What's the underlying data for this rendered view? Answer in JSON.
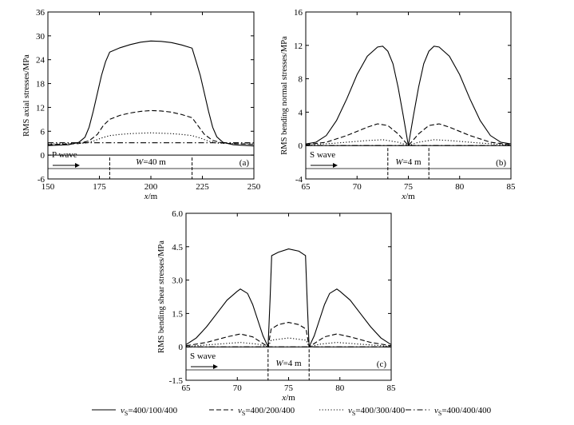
{
  "legend": {
    "entries": [
      {
        "symbol": "v",
        "subscript": "S",
        "label": "=400/100/400",
        "style": "solid"
      },
      {
        "symbol": "v",
        "subscript": "S",
        "label": "=400/200/400",
        "style": "dashed"
      },
      {
        "symbol": "v",
        "subscript": "S",
        "label": "=400/300/400",
        "style": "dotted"
      },
      {
        "symbol": "v",
        "subscript": "S",
        "label": "=400/400/400",
        "style": "dashdot"
      }
    ]
  },
  "chart_data": [
    {
      "id": "a",
      "type": "line",
      "panel_label": "(a)",
      "ylabel": "RMS axial stresses/MPa",
      "xlabel": "x/m",
      "xlim": [
        150,
        250
      ],
      "ylim": [
        -6,
        36
      ],
      "xticks": [
        150,
        175,
        200,
        225,
        250
      ],
      "yticks": [
        -6,
        0,
        6,
        12,
        18,
        24,
        30,
        36
      ],
      "wave_label": "P wave",
      "width_label": "W=40 m",
      "region": [
        180,
        220
      ],
      "series": [
        {
          "style": "solid",
          "points": [
            [
              150,
              2.4
            ],
            [
              160,
              2.6
            ],
            [
              165,
              3.2
            ],
            [
              168,
              4.5
            ],
            [
              170,
              7
            ],
            [
              172,
              11
            ],
            [
              174,
              15.5
            ],
            [
              176,
              20
            ],
            [
              178,
              23.5
            ],
            [
              180,
              25.9
            ],
            [
              185,
              27
            ],
            [
              190,
              27.8
            ],
            [
              195,
              28.4
            ],
            [
              200,
              28.7
            ],
            [
              205,
              28.6
            ],
            [
              210,
              28.3
            ],
            [
              215,
              27.7
            ],
            [
              220,
              26.9
            ],
            [
              222,
              23.5
            ],
            [
              224,
              20
            ],
            [
              226,
              15.5
            ],
            [
              228,
              11
            ],
            [
              230,
              7
            ],
            [
              232,
              4.6
            ],
            [
              235,
              3.2
            ],
            [
              240,
              2.6
            ],
            [
              250,
              2.3
            ]
          ]
        },
        {
          "style": "dashed",
          "points": [
            [
              150,
              2.6
            ],
            [
              165,
              2.9
            ],
            [
              170,
              3.6
            ],
            [
              174,
              5.2
            ],
            [
              177,
              7.5
            ],
            [
              180,
              9
            ],
            [
              185,
              10
            ],
            [
              190,
              10.6
            ],
            [
              195,
              11
            ],
            [
              200,
              11.2
            ],
            [
              205,
              11.1
            ],
            [
              210,
              10.8
            ],
            [
              215,
              10.2
            ],
            [
              220,
              9.4
            ],
            [
              223,
              7.3
            ],
            [
              226,
              5.2
            ],
            [
              230,
              3.7
            ],
            [
              235,
              3
            ],
            [
              250,
              2.7
            ]
          ]
        },
        {
          "style": "dotted",
          "points": [
            [
              150,
              2.8
            ],
            [
              168,
              3
            ],
            [
              172,
              3.5
            ],
            [
              176,
              4.3
            ],
            [
              180,
              4.9
            ],
            [
              185,
              5.2
            ],
            [
              190,
              5.4
            ],
            [
              200,
              5.6
            ],
            [
              210,
              5.4
            ],
            [
              215,
              5.2
            ],
            [
              220,
              4.9
            ],
            [
              224,
              4.3
            ],
            [
              228,
              3.5
            ],
            [
              232,
              3
            ],
            [
              250,
              2.8
            ]
          ]
        },
        {
          "style": "dashdot",
          "points": [
            [
              150,
              3.1
            ],
            [
              200,
              3.1
            ],
            [
              250,
              3.1
            ]
          ]
        }
      ]
    },
    {
      "id": "b",
      "type": "line",
      "panel_label": "(b)",
      "ylabel": "RMS bending normal stresses/MPa",
      "xlabel": "x/m",
      "xlim": [
        65,
        85
      ],
      "ylim": [
        -4,
        16
      ],
      "xticks": [
        65,
        70,
        75,
        80,
        85
      ],
      "yticks": [
        -4,
        0,
        4,
        8,
        12,
        16
      ],
      "wave_label": "S wave",
      "width_label": "W=4 m",
      "region": [
        73,
        77
      ],
      "series": [
        {
          "style": "solid",
          "points": [
            [
              65,
              0.2
            ],
            [
              66,
              0.4
            ],
            [
              67,
              1.2
            ],
            [
              68,
              3
            ],
            [
              69,
              5.6
            ],
            [
              70,
              8.5
            ],
            [
              71,
              10.7
            ],
            [
              72,
              11.8
            ],
            [
              72.5,
              11.9
            ],
            [
              73,
              11.3
            ],
            [
              73.5,
              9.8
            ],
            [
              74,
              7
            ],
            [
              74.5,
              3.6
            ],
            [
              75,
              0
            ],
            [
              75.5,
              3.6
            ],
            [
              76,
              7
            ],
            [
              76.5,
              9.8
            ],
            [
              77,
              11.3
            ],
            [
              77.5,
              11.9
            ],
            [
              78,
              11.8
            ],
            [
              79,
              10.7
            ],
            [
              80,
              8.5
            ],
            [
              81,
              5.6
            ],
            [
              82,
              3
            ],
            [
              83,
              1.2
            ],
            [
              84,
              0.4
            ],
            [
              85,
              0.2
            ]
          ]
        },
        {
          "style": "dashed",
          "points": [
            [
              65,
              0.1
            ],
            [
              67,
              0.4
            ],
            [
              69,
              1.2
            ],
            [
              71,
              2.2
            ],
            [
              72,
              2.6
            ],
            [
              73,
              2.4
            ],
            [
              74,
              1.4
            ],
            [
              75,
              0
            ],
            [
              76,
              1.4
            ],
            [
              77,
              2.4
            ],
            [
              78,
              2.6
            ],
            [
              79,
              2.2
            ],
            [
              81,
              1.2
            ],
            [
              83,
              0.4
            ],
            [
              85,
              0.1
            ]
          ]
        },
        {
          "style": "dotted",
          "points": [
            [
              65,
              0.05
            ],
            [
              68,
              0.3
            ],
            [
              71,
              0.6
            ],
            [
              72.5,
              0.7
            ],
            [
              74,
              0.4
            ],
            [
              75,
              0
            ],
            [
              76,
              0.4
            ],
            [
              77.5,
              0.7
            ],
            [
              79,
              0.6
            ],
            [
              82,
              0.3
            ],
            [
              85,
              0.05
            ]
          ]
        },
        {
          "style": "dashdot",
          "points": [
            [
              65,
              0
            ],
            [
              85,
              0
            ]
          ]
        }
      ]
    },
    {
      "id": "c",
      "type": "line",
      "panel_label": "(c)",
      "ylabel": "RMS bending shear stresses/MPa",
      "xlabel": "x/m",
      "xlim": [
        65,
        85
      ],
      "ylim": [
        -1.5,
        6.0
      ],
      "xticks": [
        65,
        70,
        75,
        80,
        85
      ],
      "yticks": [
        -1.5,
        0,
        1.5,
        3.0,
        4.5,
        6.0
      ],
      "ytick_labels": [
        "-1.5",
        "0",
        "1.5",
        "3.0",
        "4.5",
        "6.0"
      ],
      "wave_label": "S wave",
      "width_label": "W=4 m",
      "region": [
        73,
        77
      ],
      "series": [
        {
          "style": "solid",
          "points": [
            [
              65,
              0.1
            ],
            [
              66,
              0.4
            ],
            [
              67,
              0.9
            ],
            [
              68,
              1.5
            ],
            [
              69,
              2.1
            ],
            [
              70,
              2.5
            ],
            [
              70.3,
              2.6
            ],
            [
              71,
              2.4
            ],
            [
              71.5,
              1.9
            ],
            [
              72,
              1.2
            ],
            [
              72.5,
              0.5
            ],
            [
              73,
              0
            ],
            [
              73.2,
              2.2
            ],
            [
              73.35,
              4.1
            ],
            [
              74,
              4.25
            ],
            [
              75,
              4.4
            ],
            [
              76,
              4.3
            ],
            [
              76.65,
              4.1
            ],
            [
              76.8,
              2.2
            ],
            [
              77,
              0
            ],
            [
              77.5,
              0.5
            ],
            [
              78,
              1.2
            ],
            [
              78.5,
              1.9
            ],
            [
              79,
              2.4
            ],
            [
              79.7,
              2.6
            ],
            [
              80,
              2.5
            ],
            [
              81,
              2.1
            ],
            [
              82,
              1.5
            ],
            [
              83,
              0.9
            ],
            [
              84,
              0.4
            ],
            [
              85,
              0.1
            ]
          ]
        },
        {
          "style": "dashed",
          "points": [
            [
              65,
              0.05
            ],
            [
              67,
              0.2
            ],
            [
              69,
              0.45
            ],
            [
              70.3,
              0.58
            ],
            [
              71.5,
              0.45
            ],
            [
              72.5,
              0.15
            ],
            [
              73,
              0
            ],
            [
              73.3,
              0.8
            ],
            [
              74,
              1
            ],
            [
              75,
              1.1
            ],
            [
              76,
              1
            ],
            [
              76.7,
              0.8
            ],
            [
              77,
              0
            ],
            [
              77.5,
              0.15
            ],
            [
              78.5,
              0.45
            ],
            [
              79.7,
              0.58
            ],
            [
              81,
              0.45
            ],
            [
              83,
              0.2
            ],
            [
              85,
              0.05
            ]
          ]
        },
        {
          "style": "dotted",
          "points": [
            [
              65,
              0.02
            ],
            [
              68,
              0.12
            ],
            [
              70.3,
              0.2
            ],
            [
              72,
              0.12
            ],
            [
              73,
              0
            ],
            [
              73.3,
              0.3
            ],
            [
              75,
              0.4
            ],
            [
              76.7,
              0.3
            ],
            [
              77,
              0
            ],
            [
              78,
              0.12
            ],
            [
              79.7,
              0.2
            ],
            [
              82,
              0.12
            ],
            [
              85,
              0.02
            ]
          ]
        },
        {
          "style": "dashdot",
          "points": [
            [
              65,
              0
            ],
            [
              85,
              0
            ]
          ]
        }
      ]
    }
  ]
}
